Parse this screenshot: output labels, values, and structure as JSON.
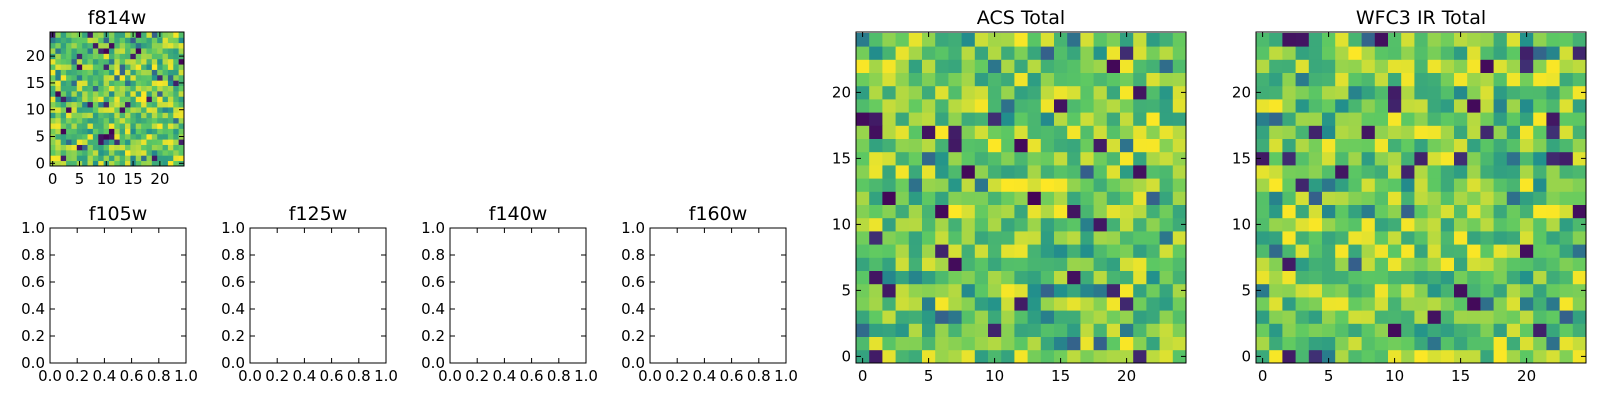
{
  "chart_data": [
    {
      "type": "heatmap",
      "title": "f814w",
      "grid_size": 25,
      "xticks": [
        "0",
        "5",
        "10",
        "15",
        "20"
      ],
      "yticks": [
        "0",
        "5",
        "10",
        "15",
        "20"
      ],
      "colormap": "viridis"
    },
    {
      "type": "empty",
      "title": "f105w",
      "xticks": [
        "0.0",
        "0.2",
        "0.4",
        "0.6",
        "0.8",
        "1.0"
      ],
      "yticks": [
        "0.0",
        "0.2",
        "0.4",
        "0.6",
        "0.8",
        "1.0"
      ]
    },
    {
      "type": "empty",
      "title": "f125w",
      "xticks": [
        "0.0",
        "0.2",
        "0.4",
        "0.6",
        "0.8",
        "1.0"
      ],
      "yticks": [
        "0.0",
        "0.2",
        "0.4",
        "0.6",
        "0.8",
        "1.0"
      ]
    },
    {
      "type": "empty",
      "title": "f140w",
      "xticks": [
        "0.0",
        "0.2",
        "0.4",
        "0.6",
        "0.8",
        "1.0"
      ],
      "yticks": [
        "0.0",
        "0.2",
        "0.4",
        "0.6",
        "0.8",
        "1.0"
      ]
    },
    {
      "type": "empty",
      "title": "f160w",
      "xticks": [
        "0.0",
        "0.2",
        "0.4",
        "0.6",
        "0.8",
        "1.0"
      ],
      "yticks": [
        "0.0",
        "0.2",
        "0.4",
        "0.6",
        "0.8",
        "1.0"
      ]
    },
    {
      "type": "heatmap",
      "title": "ACS Total",
      "grid_size": 25,
      "xticks": [
        "0",
        "5",
        "10",
        "15",
        "20"
      ],
      "yticks": [
        "0",
        "5",
        "10",
        "15",
        "20"
      ],
      "colormap": "viridis"
    },
    {
      "type": "heatmap",
      "title": "WFC3 IR Total",
      "grid_size": 25,
      "xticks": [
        "0",
        "5",
        "10",
        "15",
        "20"
      ],
      "yticks": [
        "0",
        "5",
        "10",
        "15",
        "20"
      ],
      "colormap": "viridis"
    }
  ]
}
